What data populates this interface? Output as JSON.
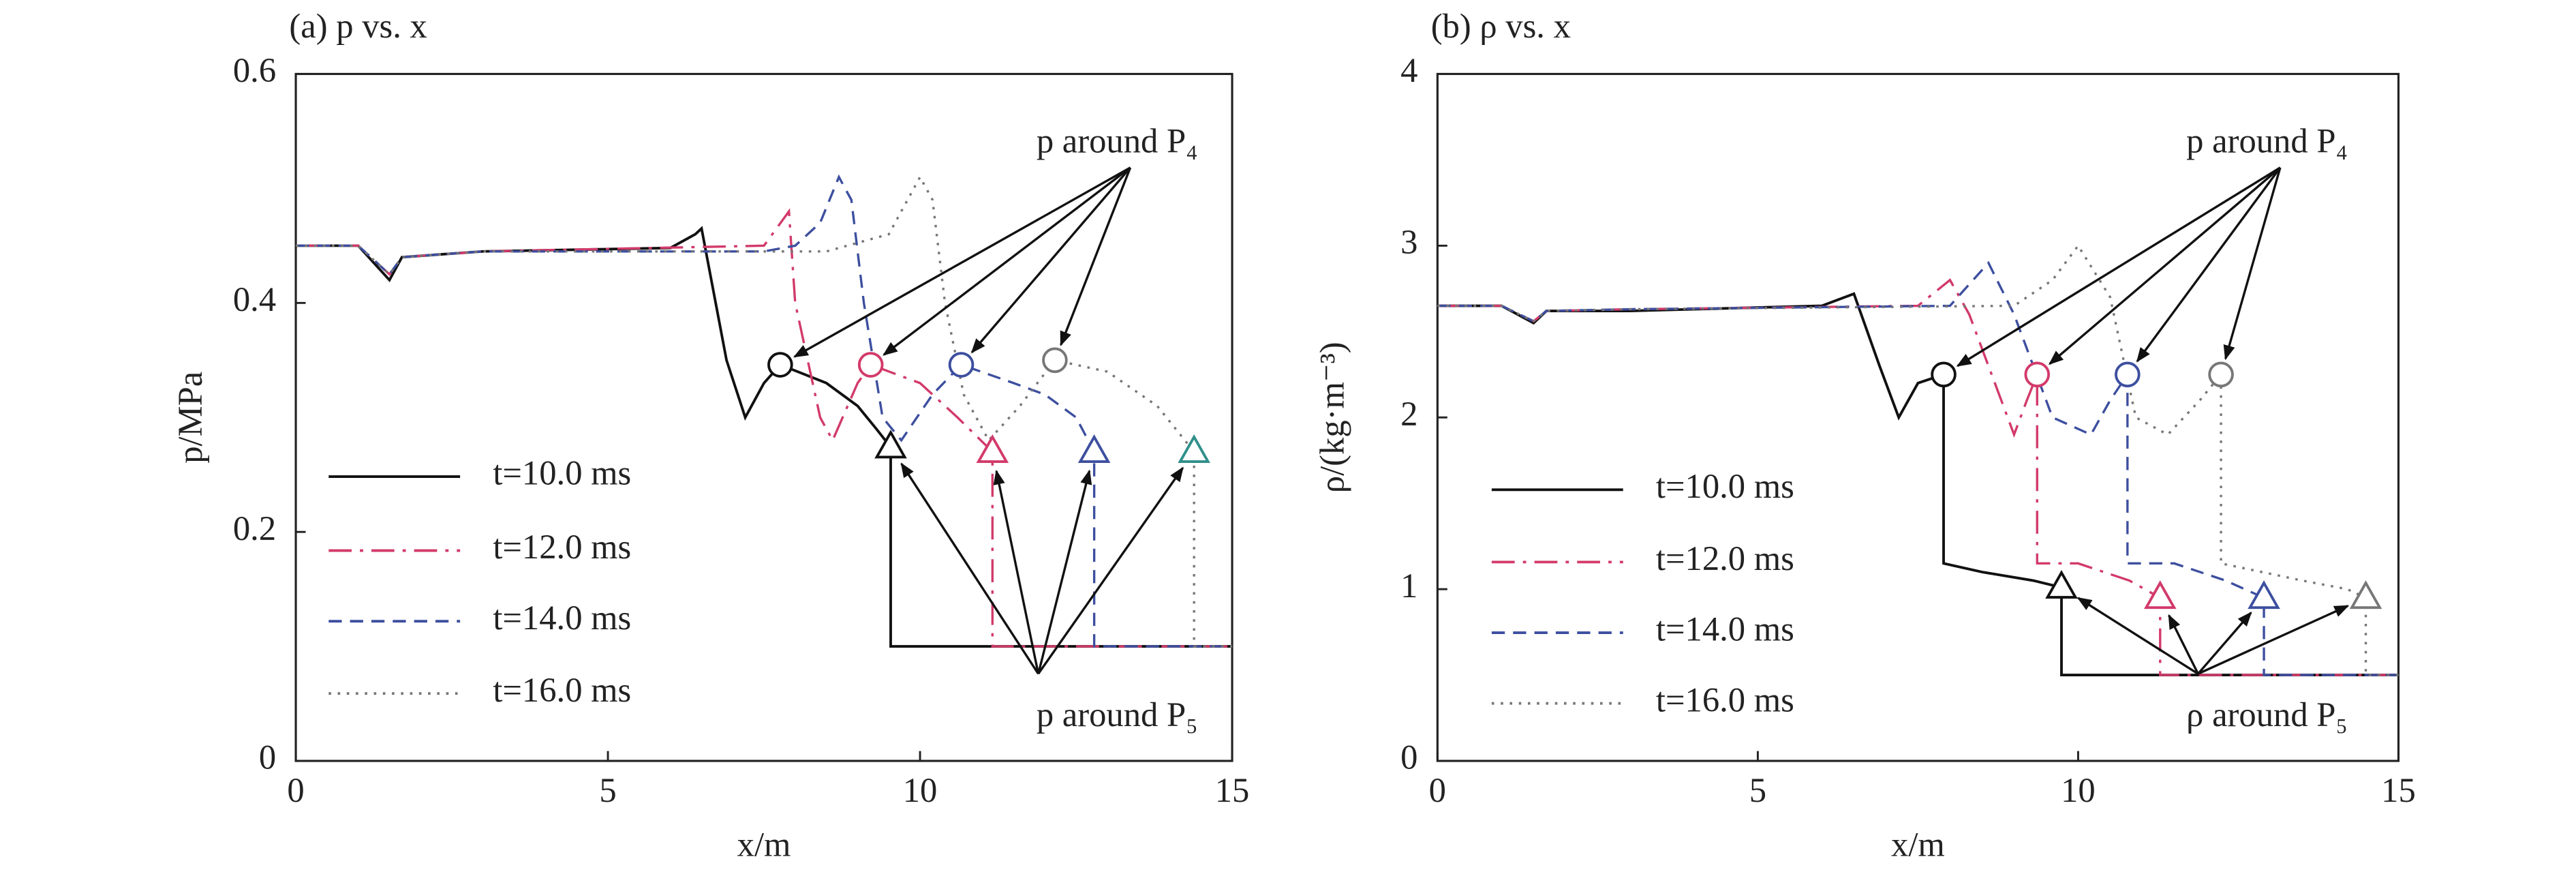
{
  "chart_data": [
    {
      "type": "line",
      "title": "(a) p vs. x",
      "x_label": "x/m",
      "y_label": "p/MPa",
      "xlim": [
        0,
        15
      ],
      "ylim": [
        0,
        0.6
      ],
      "xticks": [
        0,
        5,
        10,
        15
      ],
      "yticks": [
        0,
        0.2,
        0.4,
        0.6
      ],
      "legend": "lower left",
      "annotations": [
        "p around P₄",
        "p around P₅"
      ],
      "series": [
        {
          "name": "t=10.0 ms",
          "color": "#111111",
          "style": "solid",
          "x": [
            0,
            1.0,
            1.5,
            1.7,
            3,
            6.0,
            6.4,
            6.5,
            6.9,
            7.2,
            7.5,
            7.76,
            8.5,
            9.0,
            9.3,
            9.53,
            9.53,
            15
          ],
          "values": [
            0.45,
            0.45,
            0.42,
            0.44,
            0.445,
            0.448,
            0.46,
            0.465,
            0.35,
            0.3,
            0.33,
            0.346,
            0.33,
            0.31,
            0.29,
            0.274,
            0.1,
            0.1
          ],
          "circle": {
            "x": 7.76,
            "y": 0.346,
            "color": "#111111"
          },
          "triangle": {
            "x": 9.53,
            "y": 0.274,
            "color": "#111111"
          }
        },
        {
          "name": "t=12.0 ms",
          "color": "#d23a6a",
          "style": "dashdot",
          "x": [
            0,
            1.0,
            1.5,
            1.7,
            3,
            7.5,
            7.9,
            8.0,
            8.4,
            8.6,
            9.0,
            9.21,
            10.0,
            10.6,
            11.16,
            11.16,
            15
          ],
          "values": [
            0.45,
            0.45,
            0.425,
            0.44,
            0.445,
            0.45,
            0.48,
            0.4,
            0.3,
            0.28,
            0.33,
            0.346,
            0.33,
            0.3,
            0.27,
            0.1,
            0.1
          ],
          "circle": {
            "x": 9.21,
            "y": 0.346,
            "color": "#d23a6a"
          },
          "triangle": {
            "x": 11.16,
            "y": 0.27,
            "color": "#d23a6a"
          }
        },
        {
          "name": "t=14.0 ms",
          "color": "#3d4f9f",
          "style": "dashed",
          "x": [
            0,
            1.0,
            1.5,
            1.7,
            3,
            7.5,
            8.0,
            8.4,
            8.7,
            8.9,
            9.1,
            9.4,
            9.7,
            10.2,
            10.66,
            11.5,
            12.0,
            12.5,
            12.79,
            12.79,
            15
          ],
          "values": [
            0.45,
            0.45,
            0.425,
            0.44,
            0.445,
            0.445,
            0.45,
            0.47,
            0.51,
            0.49,
            0.4,
            0.3,
            0.28,
            0.32,
            0.346,
            0.33,
            0.32,
            0.3,
            0.27,
            0.1,
            0.1
          ],
          "circle": {
            "x": 10.66,
            "y": 0.346,
            "color": "#3d4f9f"
          },
          "triangle": {
            "x": 12.79,
            "y": 0.27,
            "color": "#3d4f9f"
          }
        },
        {
          "name": "t=16.0 ms",
          "color": "#777777",
          "style": "dotted",
          "x": [
            0,
            1.0,
            1.5,
            1.7,
            3,
            8.5,
            9.5,
            10.0,
            10.2,
            10.4,
            10.7,
            11.1,
            11.6,
            12.16,
            13.0,
            13.8,
            14.39,
            14.39,
            15
          ],
          "values": [
            0.45,
            0.45,
            0.425,
            0.44,
            0.445,
            0.445,
            0.46,
            0.51,
            0.49,
            0.4,
            0.32,
            0.28,
            0.31,
            0.35,
            0.34,
            0.31,
            0.27,
            0.1,
            0.1
          ],
          "circle": {
            "x": 12.16,
            "y": 0.35,
            "color": "#777777"
          },
          "triangle": {
            "x": 14.39,
            "y": 0.27,
            "color": "#2f8f8a"
          }
        }
      ]
    },
    {
      "type": "line",
      "title": "(b) ρ vs. x",
      "x_label": "x/m",
      "y_label": "ρ/(kg·m⁻³)",
      "xlim": [
        0,
        15
      ],
      "ylim": [
        0,
        4
      ],
      "xticks": [
        0,
        5,
        10,
        15
      ],
      "yticks": [
        0,
        1,
        2,
        3,
        4
      ],
      "legend": "lower left",
      "annotations": [
        "p around P₄",
        "ρ around P₅"
      ],
      "series": [
        {
          "name": "t=10.0 ms",
          "color": "#111111",
          "style": "solid",
          "x": [
            0,
            1.0,
            1.5,
            1.7,
            3,
            6.0,
            6.5,
            6.9,
            7.2,
            7.5,
            7.9,
            7.9,
            8.5,
            9.3,
            9.74,
            9.74,
            15
          ],
          "values": [
            2.65,
            2.65,
            2.55,
            2.62,
            2.62,
            2.65,
            2.72,
            2.3,
            2.0,
            2.2,
            2.25,
            1.15,
            1.1,
            1.05,
            1.01,
            0.5,
            0.5
          ],
          "circle": {
            "x": 7.9,
            "y": 2.25,
            "color": "#111111"
          },
          "triangle": {
            "x": 9.74,
            "y": 1.01,
            "color": "#111111"
          }
        },
        {
          "name": "t=12.0 ms",
          "color": "#d23a6a",
          "style": "dashdot",
          "x": [
            0,
            1.0,
            1.5,
            1.7,
            3,
            7.5,
            8.0,
            8.3,
            8.7,
            9.0,
            9.2,
            9.36,
            9.36,
            10.0,
            10.8,
            11.28,
            11.28,
            15
          ],
          "values": [
            2.65,
            2.65,
            2.56,
            2.62,
            2.63,
            2.65,
            2.8,
            2.6,
            2.2,
            1.9,
            2.1,
            2.25,
            1.15,
            1.15,
            1.05,
            0.95,
            0.5,
            0.5
          ],
          "circle": {
            "x": 9.36,
            "y": 2.25,
            "color": "#d23a6a"
          },
          "triangle": {
            "x": 11.28,
            "y": 0.95,
            "color": "#d23a6a"
          }
        },
        {
          "name": "t=14.0 ms",
          "color": "#3d4f9f",
          "style": "dashed",
          "x": [
            0,
            1.0,
            1.5,
            1.7,
            3,
            8.0,
            8.6,
            9.0,
            9.6,
            10.2,
            10.5,
            10.77,
            10.77,
            11.5,
            12.3,
            12.9,
            12.9,
            15
          ],
          "values": [
            2.65,
            2.65,
            2.56,
            2.62,
            2.63,
            2.65,
            2.9,
            2.6,
            2.0,
            1.9,
            2.1,
            2.25,
            1.15,
            1.15,
            1.05,
            0.95,
            0.5,
            0.5
          ],
          "circle": {
            "x": 10.77,
            "y": 2.25,
            "color": "#3d4f9f"
          },
          "triangle": {
            "x": 12.9,
            "y": 0.95,
            "color": "#3d4f9f"
          }
        },
        {
          "name": "t=16.0 ms",
          "color": "#777777",
          "style": "dotted",
          "x": [
            0,
            1.0,
            1.5,
            1.7,
            3,
            9.0,
            9.6,
            10.0,
            10.5,
            10.9,
            11.4,
            11.9,
            12.23,
            12.23,
            13.5,
            14.2,
            14.49,
            14.49,
            15
          ],
          "values": [
            2.65,
            2.65,
            2.56,
            2.62,
            2.63,
            2.65,
            2.8,
            3.0,
            2.7,
            2.0,
            1.9,
            2.1,
            2.25,
            1.15,
            1.05,
            1.0,
            0.95,
            0.5,
            0.5
          ],
          "circle": {
            "x": 12.23,
            "y": 2.25,
            "color": "#777777"
          },
          "triangle": {
            "x": 14.49,
            "y": 0.95,
            "color": "#777777"
          }
        }
      ]
    }
  ]
}
